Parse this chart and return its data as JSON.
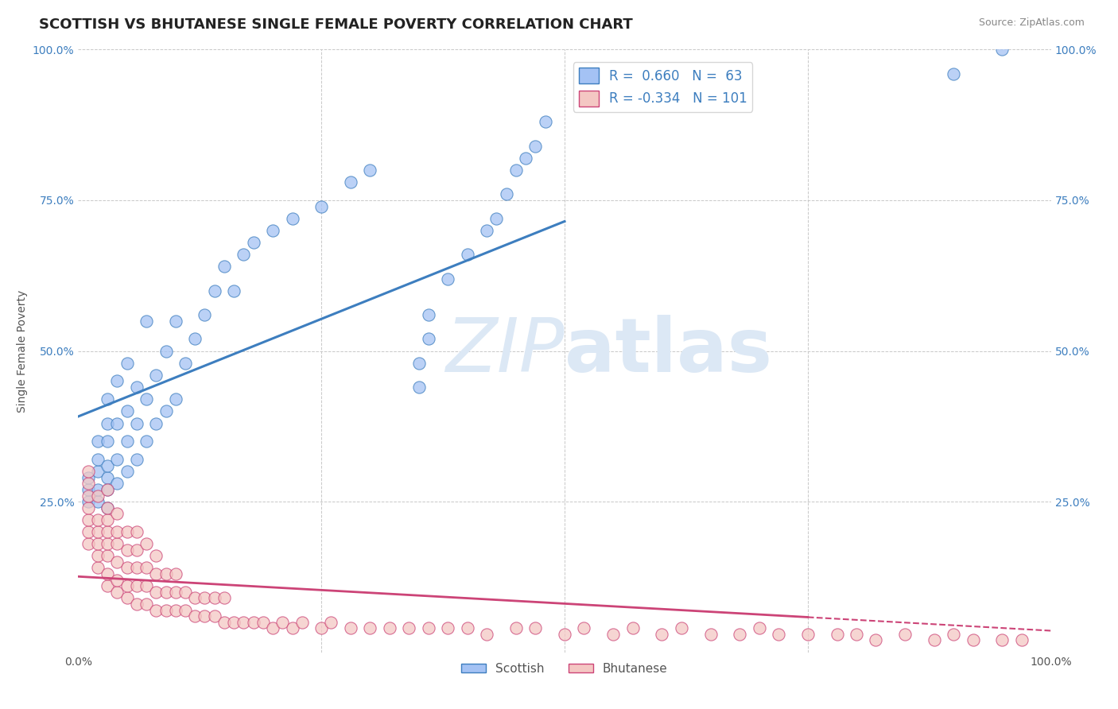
{
  "title": "SCOTTISH VS BHUTANESE SINGLE FEMALE POVERTY CORRELATION CHART",
  "source": "Source: ZipAtlas.com",
  "ylabel": "Single Female Poverty",
  "xlim": [
    0.0,
    1.0
  ],
  "ylim": [
    0.0,
    1.0
  ],
  "scottish_R": 0.66,
  "scottish_N": 63,
  "bhutanese_R": -0.334,
  "bhutanese_N": 101,
  "scottish_color": "#a4c2f4",
  "bhutanese_color": "#f4c7c3",
  "trendline_scottish_color": "#3d7ebf",
  "trendline_bhutanese_color": "#cc4477",
  "background_color": "#ffffff",
  "grid_color": "#c8c8c8",
  "watermark_color": "#dce8f5",
  "legend_label_scottish": "Scottish",
  "legend_label_bhutanese": "Bhutanese",
  "scottish_x": [
    0.01,
    0.01,
    0.01,
    0.02,
    0.02,
    0.02,
    0.02,
    0.02,
    0.03,
    0.03,
    0.03,
    0.03,
    0.03,
    0.03,
    0.03,
    0.04,
    0.04,
    0.04,
    0.04,
    0.05,
    0.05,
    0.05,
    0.05,
    0.06,
    0.06,
    0.06,
    0.07,
    0.07,
    0.07,
    0.08,
    0.08,
    0.09,
    0.09,
    0.1,
    0.1,
    0.11,
    0.12,
    0.13,
    0.14,
    0.15,
    0.16,
    0.17,
    0.18,
    0.2,
    0.22,
    0.25,
    0.28,
    0.3,
    0.35,
    0.35,
    0.36,
    0.36,
    0.38,
    0.4,
    0.42,
    0.43,
    0.44,
    0.45,
    0.46,
    0.47,
    0.48,
    0.9,
    0.95
  ],
  "scottish_y": [
    0.25,
    0.27,
    0.29,
    0.25,
    0.27,
    0.3,
    0.32,
    0.35,
    0.24,
    0.27,
    0.29,
    0.31,
    0.35,
    0.38,
    0.42,
    0.28,
    0.32,
    0.38,
    0.45,
    0.3,
    0.35,
    0.4,
    0.48,
    0.32,
    0.38,
    0.44,
    0.35,
    0.42,
    0.55,
    0.38,
    0.46,
    0.4,
    0.5,
    0.42,
    0.55,
    0.48,
    0.52,
    0.56,
    0.6,
    0.64,
    0.6,
    0.66,
    0.68,
    0.7,
    0.72,
    0.74,
    0.78,
    0.8,
    0.44,
    0.48,
    0.52,
    0.56,
    0.62,
    0.66,
    0.7,
    0.72,
    0.76,
    0.8,
    0.82,
    0.84,
    0.88,
    0.96,
    1.0
  ],
  "bhutanese_x": [
    0.01,
    0.01,
    0.01,
    0.01,
    0.01,
    0.01,
    0.01,
    0.02,
    0.02,
    0.02,
    0.02,
    0.02,
    0.02,
    0.03,
    0.03,
    0.03,
    0.03,
    0.03,
    0.03,
    0.03,
    0.03,
    0.04,
    0.04,
    0.04,
    0.04,
    0.04,
    0.04,
    0.05,
    0.05,
    0.05,
    0.05,
    0.05,
    0.06,
    0.06,
    0.06,
    0.06,
    0.06,
    0.07,
    0.07,
    0.07,
    0.07,
    0.08,
    0.08,
    0.08,
    0.08,
    0.09,
    0.09,
    0.09,
    0.1,
    0.1,
    0.1,
    0.11,
    0.11,
    0.12,
    0.12,
    0.13,
    0.13,
    0.14,
    0.14,
    0.15,
    0.15,
    0.16,
    0.17,
    0.18,
    0.19,
    0.2,
    0.21,
    0.22,
    0.23,
    0.25,
    0.26,
    0.28,
    0.3,
    0.32,
    0.34,
    0.36,
    0.38,
    0.4,
    0.42,
    0.45,
    0.47,
    0.5,
    0.52,
    0.55,
    0.57,
    0.6,
    0.62,
    0.65,
    0.68,
    0.7,
    0.72,
    0.75,
    0.78,
    0.8,
    0.82,
    0.85,
    0.88,
    0.9,
    0.92,
    0.95,
    0.97
  ],
  "bhutanese_y": [
    0.18,
    0.2,
    0.22,
    0.24,
    0.26,
    0.28,
    0.3,
    0.14,
    0.16,
    0.18,
    0.2,
    0.22,
    0.26,
    0.11,
    0.13,
    0.16,
    0.18,
    0.2,
    0.22,
    0.24,
    0.27,
    0.1,
    0.12,
    0.15,
    0.18,
    0.2,
    0.23,
    0.09,
    0.11,
    0.14,
    0.17,
    0.2,
    0.08,
    0.11,
    0.14,
    0.17,
    0.2,
    0.08,
    0.11,
    0.14,
    0.18,
    0.07,
    0.1,
    0.13,
    0.16,
    0.07,
    0.1,
    0.13,
    0.07,
    0.1,
    0.13,
    0.07,
    0.1,
    0.06,
    0.09,
    0.06,
    0.09,
    0.06,
    0.09,
    0.05,
    0.09,
    0.05,
    0.05,
    0.05,
    0.05,
    0.04,
    0.05,
    0.04,
    0.05,
    0.04,
    0.05,
    0.04,
    0.04,
    0.04,
    0.04,
    0.04,
    0.04,
    0.04,
    0.03,
    0.04,
    0.04,
    0.03,
    0.04,
    0.03,
    0.04,
    0.03,
    0.04,
    0.03,
    0.03,
    0.04,
    0.03,
    0.03,
    0.03,
    0.03,
    0.02,
    0.03,
    0.02,
    0.03,
    0.02,
    0.02,
    0.02
  ]
}
